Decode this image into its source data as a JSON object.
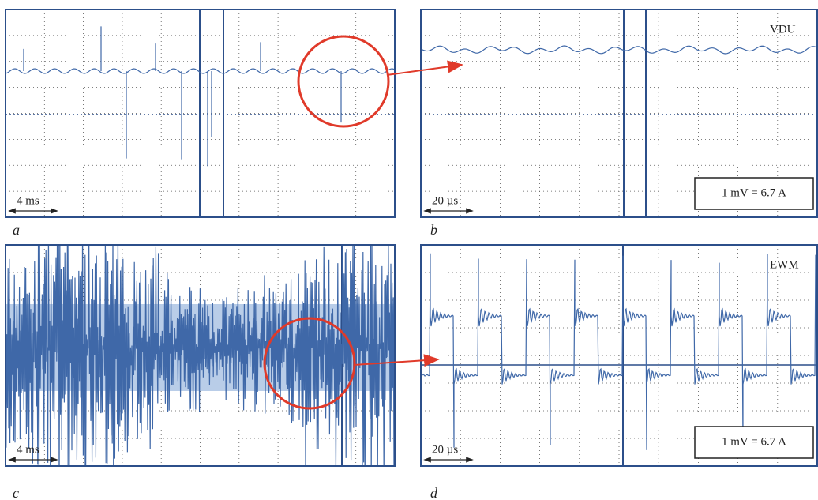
{
  "panels": [
    {
      "label": "a",
      "scale": "4 ms"
    },
    {
      "label": "b",
      "scale": "20 µs",
      "tag": "VDU",
      "note": "1 mV = 6.7 A"
    },
    {
      "label": "c",
      "scale": "4 ms"
    },
    {
      "label": "d",
      "scale": "20 µs",
      "tag": "EWM",
      "note": "1 mV = 6.7 A"
    }
  ]
}
